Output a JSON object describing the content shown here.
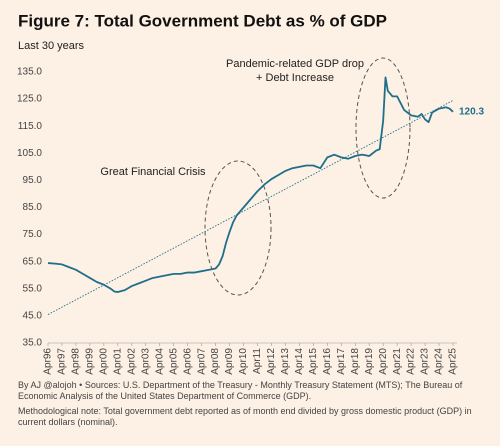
{
  "chart_data": {
    "type": "line",
    "title": "Figure 7: Total Government Debt as % of GDP",
    "subtitle": "Last 30 years",
    "annotations": [
      "Great Financial Crisis",
      "Pandemic-related GDP drop",
      "+ Debt Increase"
    ],
    "source": "By AJ @alojoh • Sources: U.S. Department of the Treasury - Monthly Treasury Statement (MTS); The Bureau of Economic Analysis of the United States Department of Commerce (GDP).",
    "note": "Methodological note: Total government debt reported as of month end divided by gross domestic product (GDP) in current dollars (nominal).",
    "x": [
      "1996-04",
      "1996-10",
      "1997-04",
      "1997-10",
      "1998-04",
      "1998-10",
      "1999-04",
      "1999-10",
      "2000-04",
      "2000-10",
      "2001-01",
      "2001-04",
      "2001-10",
      "2002-04",
      "2002-10",
      "2003-04",
      "2003-10",
      "2004-04",
      "2004-10",
      "2005-04",
      "2005-10",
      "2006-04",
      "2006-10",
      "2007-04",
      "2007-10",
      "2008-04",
      "2008-07",
      "2008-10",
      "2009-01",
      "2009-04",
      "2009-07",
      "2009-10",
      "2010-04",
      "2010-10",
      "2011-04",
      "2011-10",
      "2012-04",
      "2012-10",
      "2013-04",
      "2013-10",
      "2014-04",
      "2014-10",
      "2015-04",
      "2015-10",
      "2016-04",
      "2016-10",
      "2017-04",
      "2017-10",
      "2018-04",
      "2018-10",
      "2019-04",
      "2019-10",
      "2020-01",
      "2020-04",
      "2020-06",
      "2020-08",
      "2020-12",
      "2021-04",
      "2021-10",
      "2022-04",
      "2022-10",
      "2023-01",
      "2023-04",
      "2023-07",
      "2023-10",
      "2024-04",
      "2024-10",
      "2025-01",
      "2025-04"
    ],
    "series": [
      {
        "color": "#1f6f8b",
        "values": [
          64.5,
          64.3,
          64.0,
          63.0,
          62.0,
          60.5,
          59.0,
          57.5,
          56.5,
          55.0,
          54.0,
          53.8,
          54.5,
          56.0,
          57.0,
          58.0,
          59.0,
          59.5,
          60.0,
          60.5,
          60.5,
          61.0,
          61.0,
          61.5,
          62.0,
          62.5,
          64.0,
          67.0,
          72.0,
          76.0,
          79.5,
          82.0,
          85.0,
          88.0,
          91.0,
          93.5,
          95.5,
          97.0,
          98.5,
          99.5,
          100.0,
          100.5,
          100.5,
          99.5,
          103.5,
          104.5,
          103.5,
          103.0,
          104.0,
          104.5,
          104.0,
          106.0,
          106.5,
          117.0,
          133.0,
          128.0,
          126.0,
          126.0,
          121.0,
          119.0,
          118.5,
          119.5,
          117.5,
          116.5,
          120.0,
          121.5,
          122.0,
          121.5,
          120.3
        ]
      }
    ],
    "trendline": {
      "color": "#1f6f8b",
      "x": [
        "1996-04",
        "2025-04"
      ],
      "values": [
        45.5,
        124.5
      ]
    },
    "xlim": [
      "1996-04",
      "2025-04"
    ],
    "xticks": [
      {
        "value": "1996-04",
        "label": "Apr96"
      },
      {
        "value": "1997-04",
        "label": "Apr97"
      },
      {
        "value": "1998-04",
        "label": "Apr98"
      },
      {
        "value": "1999-04",
        "label": "Apr99"
      },
      {
        "value": "2000-04",
        "label": "Apr00"
      },
      {
        "value": "2001-04",
        "label": "Apr01"
      },
      {
        "value": "2002-04",
        "label": "Apr02"
      },
      {
        "value": "2003-04",
        "label": "Apr03"
      },
      {
        "value": "2004-04",
        "label": "Apr04"
      },
      {
        "value": "2005-04",
        "label": "Apr05"
      },
      {
        "value": "2006-04",
        "label": "Apr06"
      },
      {
        "value": "2007-04",
        "label": "Apr07"
      },
      {
        "value": "2008-04",
        "label": "Apr08"
      },
      {
        "value": "2009-04",
        "label": "Apr09"
      },
      {
        "value": "2010-04",
        "label": "Apr10"
      },
      {
        "value": "2011-04",
        "label": "Apr11"
      },
      {
        "value": "2012-04",
        "label": "Apr12"
      },
      {
        "value": "2013-04",
        "label": "Apr13"
      },
      {
        "value": "2014-04",
        "label": "Apr14"
      },
      {
        "value": "2015-04",
        "label": "Apr15"
      },
      {
        "value": "2016-04",
        "label": "Apr16"
      },
      {
        "value": "2017-04",
        "label": "Apr17"
      },
      {
        "value": "2018-04",
        "label": "Apr18"
      },
      {
        "value": "2019-04",
        "label": "Apr19"
      },
      {
        "value": "2020-04",
        "label": "Apr20"
      },
      {
        "value": "2021-04",
        "label": "Apr21"
      },
      {
        "value": "2022-04",
        "label": "Apr22"
      },
      {
        "value": "2023-04",
        "label": "Apr23"
      },
      {
        "value": "2024-04",
        "label": "Apr24"
      },
      {
        "value": "2025-04",
        "label": "Apr25"
      }
    ],
    "ylim": [
      35,
      135
    ],
    "yticks": [
      {
        "value": 35,
        "label": "35.0"
      },
      {
        "value": 45,
        "label": "45.0"
      },
      {
        "value": 55,
        "label": "55.0"
      },
      {
        "value": 65,
        "label": "65.0"
      },
      {
        "value": 75,
        "label": "75.0"
      },
      {
        "value": 85,
        "label": "85.0"
      },
      {
        "value": 95,
        "label": "95.0"
      },
      {
        "value": 105,
        "label": "105.0"
      },
      {
        "value": 115,
        "label": "115.0"
      },
      {
        "value": 125,
        "label": "125.0"
      },
      {
        "value": 135,
        "label": "135.0"
      }
    ],
    "grid": false
  }
}
